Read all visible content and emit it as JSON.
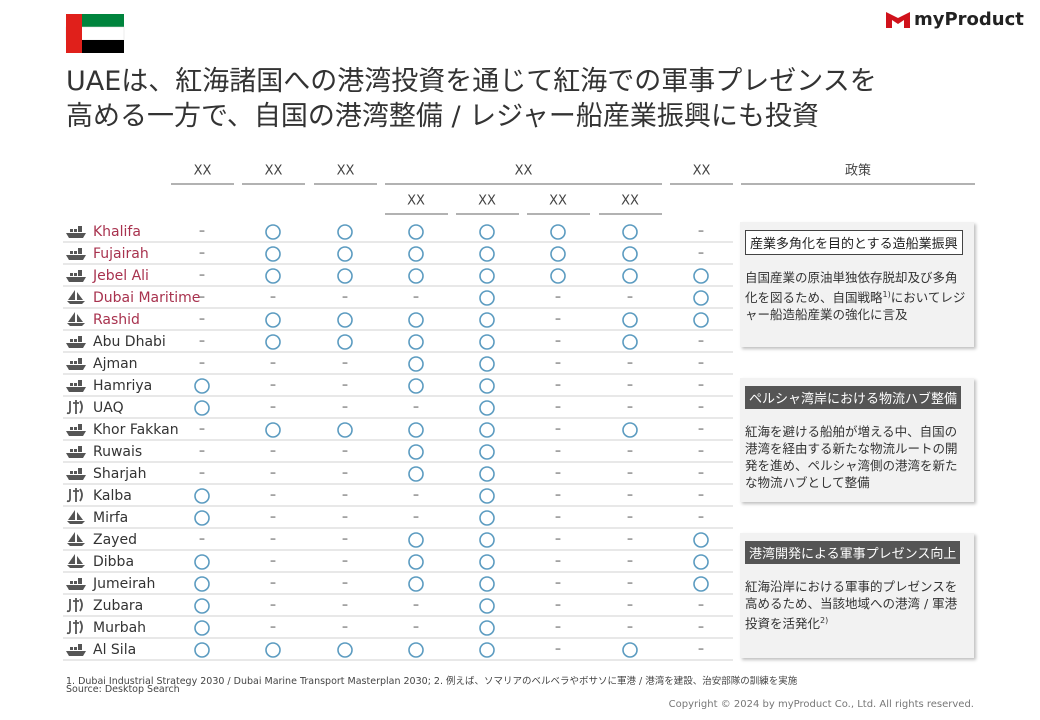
{
  "header": {
    "logo": "myProduct",
    "title_lines": [
      "UAEは、紅海諸国への港湾投資を通じて紅海での軍事プレゼンスを",
      "高める一方で、自国の港湾整備 / レジャー船産業振興にも投資"
    ]
  },
  "table": {
    "columns": [
      "XX",
      "XX",
      "XX",
      "XX",
      "XX"
    ],
    "subcolumns": [
      "XX",
      "XX",
      "XX",
      "XX"
    ],
    "policy_header": "政策",
    "dash": "–",
    "circle_color": "#5b9bc0",
    "rows": [
      {
        "name": "Khalifa",
        "icon": "ship",
        "color": "#a8324e",
        "cells": [
          0,
          1,
          1,
          1,
          1,
          1,
          1,
          0
        ]
      },
      {
        "name": "Fujairah",
        "icon": "ship",
        "color": "#a8324e",
        "cells": [
          0,
          1,
          1,
          1,
          1,
          1,
          1,
          0
        ]
      },
      {
        "name": "Jebel Ali",
        "icon": "ship",
        "color": "#a8324e",
        "cells": [
          0,
          1,
          1,
          1,
          1,
          1,
          1,
          1
        ]
      },
      {
        "name": "Dubai Maritime",
        "icon": "sail",
        "color": "#a8324e",
        "cells": [
          0,
          0,
          0,
          0,
          1,
          0,
          0,
          1
        ]
      },
      {
        "name": "Rashid",
        "icon": "sail",
        "color": "#a8324e",
        "cells": [
          0,
          1,
          1,
          1,
          1,
          0,
          1,
          1
        ]
      },
      {
        "name": "Abu Dhabi",
        "icon": "ship",
        "color": "#333333",
        "cells": [
          0,
          1,
          1,
          1,
          1,
          0,
          1,
          0
        ]
      },
      {
        "name": "Ajman",
        "icon": "ship",
        "color": "#333333",
        "cells": [
          0,
          0,
          0,
          1,
          1,
          0,
          0,
          0
        ]
      },
      {
        "name": "Hamriya",
        "icon": "ship",
        "color": "#333333",
        "cells": [
          1,
          0,
          0,
          1,
          1,
          0,
          0,
          0
        ]
      },
      {
        "name": "UAQ",
        "icon": "fish",
        "color": "#333333",
        "cells": [
          1,
          0,
          0,
          0,
          1,
          0,
          0,
          0
        ]
      },
      {
        "name": "Khor Fakkan",
        "icon": "ship",
        "color": "#333333",
        "cells": [
          0,
          1,
          1,
          1,
          1,
          0,
          1,
          0
        ]
      },
      {
        "name": "Ruwais",
        "icon": "ship",
        "color": "#333333",
        "cells": [
          0,
          0,
          0,
          1,
          1,
          0,
          0,
          0
        ]
      },
      {
        "name": "Sharjah",
        "icon": "ship",
        "color": "#333333",
        "cells": [
          0,
          0,
          0,
          1,
          1,
          0,
          0,
          0
        ]
      },
      {
        "name": "Kalba",
        "icon": "fish",
        "color": "#333333",
        "cells": [
          1,
          0,
          0,
          0,
          1,
          0,
          0,
          0
        ]
      },
      {
        "name": "Mirfa",
        "icon": "sail",
        "color": "#333333",
        "cells": [
          1,
          0,
          0,
          0,
          1,
          0,
          0,
          0
        ]
      },
      {
        "name": "Zayed",
        "icon": "sail",
        "color": "#333333",
        "cells": [
          0,
          0,
          0,
          1,
          1,
          0,
          0,
          1
        ]
      },
      {
        "name": "Dibba",
        "icon": "sail",
        "color": "#333333",
        "cells": [
          1,
          0,
          0,
          1,
          1,
          0,
          0,
          1
        ]
      },
      {
        "name": "Jumeirah",
        "icon": "ship",
        "color": "#333333",
        "cells": [
          1,
          0,
          0,
          1,
          1,
          0,
          0,
          1
        ]
      },
      {
        "name": "Zubara",
        "icon": "fish",
        "color": "#333333",
        "cells": [
          1,
          0,
          0,
          0,
          1,
          0,
          0,
          0
        ]
      },
      {
        "name": "Murbah",
        "icon": "fish",
        "color": "#333333",
        "cells": [
          1,
          0,
          0,
          0,
          1,
          0,
          0,
          0
        ]
      },
      {
        "name": "Al Sila",
        "icon": "ship",
        "color": "#333333",
        "cells": [
          1,
          1,
          1,
          1,
          1,
          0,
          1,
          0
        ]
      }
    ]
  },
  "policies": [
    {
      "heading": "産業多角化を目的とする造船業振興",
      "body": [
        "自国産業の原油単独依存脱却及び多角化を図るため、自国戦略",
        "1)",
        "においてレジャー船造船産業の強化に言及"
      ]
    },
    {
      "heading": "ペルシャ湾岸における物流ハブ整備",
      "body": [
        "紅海を避ける船舶が増える中、自国の港湾を経由する新たな物流ルートの開発を進め、ペルシャ湾側の港湾を新たな物流ハブとして整備"
      ]
    },
    {
      "heading": "港湾開発による軍事プレゼンス向上",
      "body": [
        "紅海沿岸における軍事的プレゼンスを高めるため、当該地域への港湾 / 軍港投資を活発化",
        "2)"
      ]
    }
  ],
  "footer": {
    "notes": "1. Dubai Industrial Strategy 2030 / Dubai Marine Transport Masterplan 2030; 2. 例えば、ソマリアのベルベラやボサソに軍港 / 港湾を建設、治安部隊の訓練を実施",
    "source": "Source: Desktop Search",
    "copyright": "Copyright © 2024 by myProduct Co., Ltd.  All rights reserved."
  }
}
